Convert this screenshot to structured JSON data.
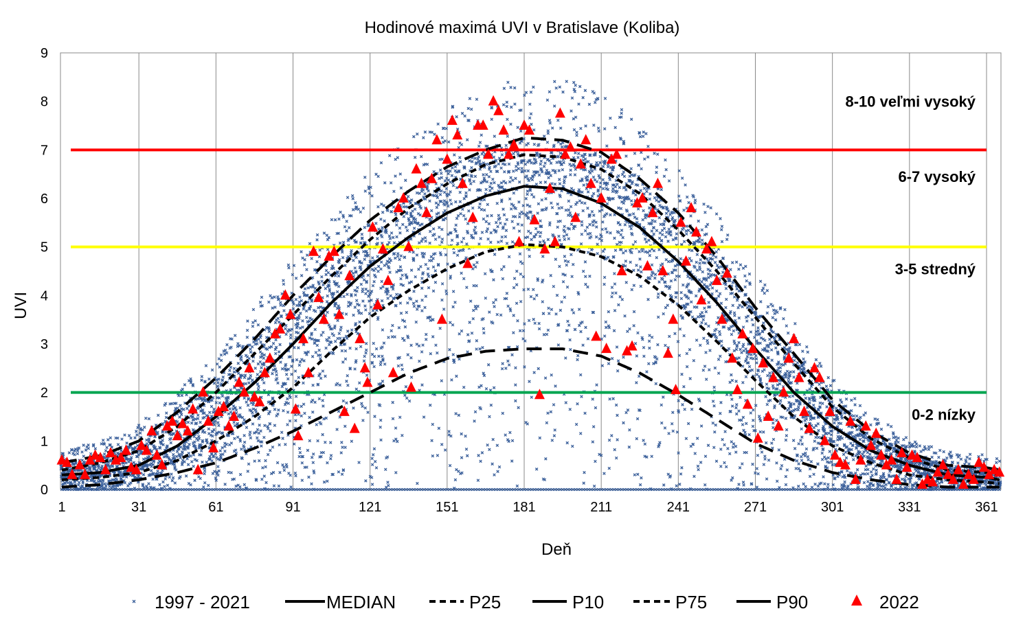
{
  "chart_data": {
    "type": "scatter",
    "title": "Hodinové maximá UVI v Bratislave (Koliba)",
    "xlabel": "Deň",
    "ylabel": "UVI",
    "xlim": [
      1,
      366.5
    ],
    "ylim": [
      0,
      9
    ],
    "xticks": [
      1,
      31,
      61,
      91,
      121,
      151,
      181,
      211,
      241,
      271,
      301,
      331,
      361
    ],
    "yticks": [
      0,
      1,
      2,
      3,
      4,
      5,
      6,
      7,
      8,
      9
    ],
    "grid": "vertical",
    "legend_position": "bottom",
    "thresholds": [
      {
        "value": 7,
        "color": "#ff0000"
      },
      {
        "value": 5,
        "color": "#ffff00"
      },
      {
        "value": 2,
        "color": "#00a550"
      }
    ],
    "category_labels": [
      {
        "label": "8-10 veľmi vysoký",
        "y": 8
      },
      {
        "label": "6-7 vysoký",
        "y": 6.45
      },
      {
        "label": "3-5 stredný",
        "y": 4.55
      },
      {
        "label": "0-2 nízky",
        "y": 1.55
      }
    ],
    "curve_days": [
      1,
      16,
      31,
      46,
      61,
      76,
      91,
      106,
      121,
      136,
      151,
      166,
      181,
      196,
      211,
      226,
      241,
      256,
      271,
      286,
      301,
      316,
      331,
      346,
      361,
      366
    ],
    "series": [
      {
        "name": "1997 - 2021",
        "kind": "scatter",
        "color": "#3a5f9a"
      },
      {
        "name": "MEDIAN",
        "kind": "line",
        "dash": "solid",
        "values": [
          0.3,
          0.35,
          0.5,
          0.9,
          1.5,
          2.2,
          3.0,
          3.85,
          4.6,
          5.2,
          5.7,
          6.05,
          6.25,
          6.2,
          5.9,
          5.4,
          4.7,
          3.85,
          2.9,
          2.0,
          1.3,
          0.8,
          0.5,
          0.3,
          0.25,
          0.2
        ]
      },
      {
        "name": "P25",
        "kind": "line",
        "dash": "short",
        "values": [
          0.2,
          0.25,
          0.35,
          0.6,
          1.0,
          1.5,
          2.1,
          2.85,
          3.55,
          4.1,
          4.55,
          4.9,
          5.05,
          5.0,
          4.8,
          4.4,
          3.8,
          3.05,
          2.25,
          1.5,
          0.9,
          0.55,
          0.3,
          0.2,
          0.15,
          0.12
        ]
      },
      {
        "name": "P10",
        "kind": "line",
        "dash": "long",
        "values": [
          0.05,
          0.1,
          0.2,
          0.35,
          0.55,
          0.85,
          1.2,
          1.6,
          2.0,
          2.4,
          2.7,
          2.85,
          2.9,
          2.9,
          2.75,
          2.4,
          1.95,
          1.45,
          0.95,
          0.6,
          0.35,
          0.2,
          0.1,
          0.05,
          0.05,
          0.05
        ]
      },
      {
        "name": "P75",
        "kind": "line",
        "dash": "short",
        "values": [
          0.4,
          0.55,
          0.8,
          1.3,
          2.0,
          2.8,
          3.6,
          4.4,
          5.15,
          5.8,
          6.3,
          6.7,
          6.9,
          6.85,
          6.6,
          6.1,
          5.35,
          4.5,
          3.55,
          2.6,
          1.7,
          1.05,
          0.65,
          0.4,
          0.35,
          0.3
        ]
      },
      {
        "name": "P90",
        "kind": "line",
        "dash": "long",
        "values": [
          0.55,
          0.7,
          1.0,
          1.6,
          2.3,
          3.1,
          4.0,
          4.8,
          5.55,
          6.15,
          6.65,
          7.0,
          7.25,
          7.2,
          6.95,
          6.4,
          5.7,
          4.8,
          3.75,
          2.8,
          1.85,
          1.2,
          0.75,
          0.5,
          0.45,
          0.4
        ]
      },
      {
        "name": "2022",
        "kind": "triangle",
        "color": "#ff0000",
        "points": [
          [
            1,
            0.6
          ],
          [
            3,
            0.55
          ],
          [
            5,
            0.3
          ],
          [
            8,
            0.5
          ],
          [
            10,
            0.3
          ],
          [
            12,
            0.6
          ],
          [
            14,
            0.7
          ],
          [
            16,
            0.65
          ],
          [
            18,
            0.4
          ],
          [
            20,
            0.75
          ],
          [
            22,
            0.6
          ],
          [
            24,
            0.65
          ],
          [
            26,
            0.8
          ],
          [
            28,
            0.45
          ],
          [
            30,
            0.4
          ],
          [
            32,
            0.9
          ],
          [
            34,
            0.8
          ],
          [
            36,
            1.2
          ],
          [
            38,
            0.7
          ],
          [
            40,
            0.5
          ],
          [
            42,
            1.3
          ],
          [
            44,
            1.4
          ],
          [
            46,
            1.1
          ],
          [
            48,
            1.35
          ],
          [
            50,
            1.2
          ],
          [
            52,
            1.65
          ],
          [
            54,
            0.4
          ],
          [
            56,
            2.0
          ],
          [
            58,
            1.4
          ],
          [
            60,
            0.85
          ],
          [
            62,
            1.6
          ],
          [
            64,
            1.7
          ],
          [
            66,
            1.3
          ],
          [
            68,
            1.5
          ],
          [
            70,
            2.2
          ],
          [
            72,
            2.0
          ],
          [
            74,
            2.5
          ],
          [
            76,
            1.9
          ],
          [
            78,
            1.8
          ],
          [
            80,
            2.4
          ],
          [
            82,
            2.7
          ],
          [
            84,
            3.2
          ],
          [
            86,
            3.3
          ],
          [
            88,
            4.0
          ],
          [
            90,
            3.6
          ],
          [
            92,
            1.65
          ],
          [
            93,
            1.1
          ],
          [
            95,
            3.1
          ],
          [
            97,
            2.4
          ],
          [
            99,
            4.9
          ],
          [
            101,
            3.95
          ],
          [
            103,
            3.5
          ],
          [
            105,
            4.8
          ],
          [
            107,
            4.9
          ],
          [
            109,
            3.6
          ],
          [
            111,
            1.6
          ],
          [
            113,
            4.4
          ],
          [
            115,
            1.25
          ],
          [
            117,
            3.1
          ],
          [
            119,
            2.5
          ],
          [
            120,
            2.2
          ],
          [
            122,
            5.4
          ],
          [
            124,
            3.8
          ],
          [
            126,
            4.95
          ],
          [
            128,
            4.3
          ],
          [
            130,
            2.4
          ],
          [
            132,
            5.8
          ],
          [
            134,
            6.0
          ],
          [
            136,
            5.0
          ],
          [
            137,
            2.1
          ],
          [
            139,
            6.6
          ],
          [
            141,
            6.3
          ],
          [
            143,
            5.7
          ],
          [
            145,
            6.4
          ],
          [
            147,
            7.2
          ],
          [
            149,
            3.5
          ],
          [
            151,
            6.8
          ],
          [
            153,
            7.6
          ],
          [
            155,
            7.3
          ],
          [
            157,
            6.3
          ],
          [
            159,
            4.65
          ],
          [
            161,
            5.6
          ],
          [
            163,
            7.5
          ],
          [
            165,
            7.5
          ],
          [
            167,
            6.9
          ],
          [
            169,
            8.0
          ],
          [
            171,
            7.8
          ],
          [
            173,
            7.4
          ],
          [
            175,
            6.9
          ],
          [
            177,
            7.1
          ],
          [
            179,
            5.1
          ],
          [
            181,
            7.5
          ],
          [
            183,
            7.4
          ],
          [
            185,
            5.55
          ],
          [
            187,
            1.95
          ],
          [
            189,
            4.95
          ],
          [
            191,
            6.2
          ],
          [
            193,
            5.1
          ],
          [
            195,
            7.75
          ],
          [
            197,
            6.9
          ],
          [
            199,
            7.05
          ],
          [
            201,
            5.6
          ],
          [
            203,
            6.7
          ],
          [
            205,
            7.2
          ],
          [
            207,
            6.3
          ],
          [
            209,
            3.15
          ],
          [
            211,
            6.0
          ],
          [
            213,
            2.9
          ],
          [
            215,
            6.8
          ],
          [
            217,
            6.9
          ],
          [
            219,
            4.5
          ],
          [
            221,
            2.85
          ],
          [
            223,
            2.95
          ],
          [
            225,
            5.9
          ],
          [
            227,
            6.0
          ],
          [
            229,
            4.6
          ],
          [
            231,
            5.7
          ],
          [
            233,
            6.3
          ],
          [
            235,
            4.5
          ],
          [
            237,
            2.8
          ],
          [
            239,
            3.5
          ],
          [
            240,
            2.05
          ],
          [
            242,
            5.5
          ],
          [
            244,
            4.7
          ],
          [
            246,
            5.8
          ],
          [
            248,
            5.3
          ],
          [
            250,
            3.9
          ],
          [
            252,
            4.95
          ],
          [
            254,
            5.1
          ],
          [
            256,
            4.3
          ],
          [
            258,
            3.5
          ],
          [
            260,
            4.45
          ],
          [
            262,
            2.7
          ],
          [
            264,
            2.05
          ],
          [
            266,
            3.2
          ],
          [
            268,
            1.75
          ],
          [
            270,
            2.9
          ],
          [
            272,
            1.05
          ],
          [
            274,
            2.6
          ],
          [
            276,
            1.5
          ],
          [
            278,
            2.3
          ],
          [
            280,
            1.3
          ],
          [
            282,
            2.0
          ],
          [
            284,
            2.7
          ],
          [
            286,
            3.1
          ],
          [
            288,
            2.3
          ],
          [
            290,
            1.6
          ],
          [
            292,
            1.25
          ],
          [
            294,
            2.5
          ],
          [
            296,
            2.3
          ],
          [
            298,
            1.0
          ],
          [
            300,
            1.6
          ],
          [
            302,
            0.7
          ],
          [
            304,
            0.55
          ],
          [
            306,
            0.5
          ],
          [
            308,
            1.4
          ],
          [
            310,
            0.2
          ],
          [
            312,
            0.6
          ],
          [
            314,
            1.3
          ],
          [
            316,
            0.9
          ],
          [
            318,
            1.15
          ],
          [
            320,
            0.7
          ],
          [
            322,
            0.5
          ],
          [
            324,
            0.6
          ],
          [
            326,
            0.2
          ],
          [
            328,
            0.75
          ],
          [
            330,
            0.45
          ],
          [
            332,
            0.7
          ],
          [
            334,
            0.65
          ],
          [
            336,
            0.1
          ],
          [
            338,
            0.2
          ],
          [
            340,
            0.15
          ],
          [
            342,
            0.35
          ],
          [
            344,
            0.5
          ],
          [
            346,
            0.3
          ],
          [
            348,
            0.2
          ],
          [
            350,
            0.4
          ],
          [
            352,
            0.1
          ],
          [
            354,
            0.3
          ],
          [
            356,
            0.2
          ],
          [
            358,
            0.55
          ],
          [
            360,
            0.45
          ],
          [
            362,
            0.3
          ],
          [
            364,
            0.4
          ],
          [
            366,
            0.35
          ]
        ]
      }
    ]
  }
}
